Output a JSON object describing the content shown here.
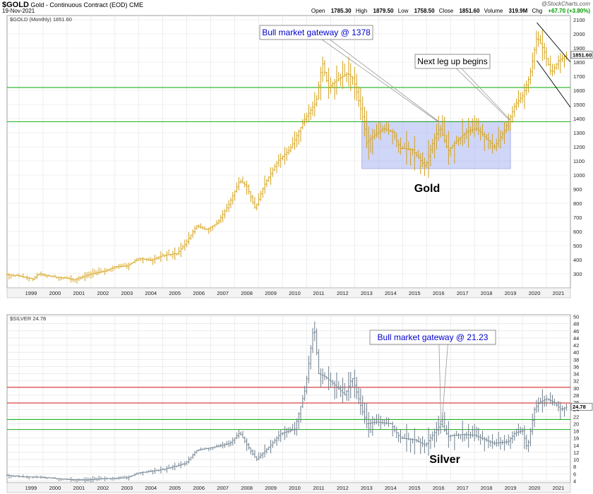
{
  "header": {
    "symbol": "$GOLD",
    "description": "Gold - Continuous Contract (EOD) CME",
    "date": "19-Nov-2021",
    "brand": "@StockCharts.com",
    "open_label": "Open",
    "open": "1785.30",
    "high_label": "High",
    "high": "1879.50",
    "low_label": "Low",
    "low": "1758.50",
    "close_label": "Close",
    "close": "1851.60",
    "volume_label": "Volume",
    "volume": "319.9M",
    "chg_label": "Chg",
    "chg": "+67.70 (+3.80%)"
  },
  "chart_data": [
    {
      "type": "ohlc",
      "legend": "$GOLD (Monthly) 1851.60",
      "last_value_label": "1851.60",
      "annotation_label": "Gold",
      "x_ticks": [
        "1999",
        "2000",
        "2001",
        "2002",
        "2003",
        "2004",
        "2005",
        "2006",
        "2007",
        "2008",
        "2009",
        "2010",
        "2011",
        "2012",
        "2013",
        "2014",
        "2015",
        "2016",
        "2017",
        "2018",
        "2019",
        "2020",
        "2021"
      ],
      "x_range": [
        1998.5,
        2022.0
      ],
      "y_range": [
        200,
        2130
      ],
      "y_ticks": [
        300,
        400,
        500,
        600,
        700,
        800,
        900,
        1000,
        1100,
        1200,
        1300,
        1400,
        1500,
        1600,
        1700,
        1800,
        1900,
        2000,
        2100
      ],
      "color": "#d4a017",
      "series": [
        {
          "values": [
            [
              1998.5,
              295
            ],
            [
              1999.0,
              285
            ],
            [
              1999.6,
              262
            ],
            [
              1999.8,
              300
            ],
            [
              2000.3,
              282
            ],
            [
              2001.0,
              268
            ],
            [
              2001.3,
              258
            ],
            [
              2002.0,
              300
            ],
            [
              2002.6,
              320
            ],
            [
              2003.0,
              350
            ],
            [
              2003.5,
              355
            ],
            [
              2004.0,
              410
            ],
            [
              2004.5,
              395
            ],
            [
              2005.0,
              430
            ],
            [
              2005.6,
              445
            ],
            [
              2005.95,
              515
            ],
            [
              2006.4,
              640
            ],
            [
              2006.8,
              610
            ],
            [
              2007.3,
              665
            ],
            [
              2007.75,
              790
            ],
            [
              2008.2,
              960
            ],
            [
              2008.5,
              920
            ],
            [
              2008.85,
              760
            ],
            [
              2009.2,
              920
            ],
            [
              2009.8,
              1100
            ],
            [
              2010.3,
              1180
            ],
            [
              2010.9,
              1390
            ],
            [
              2011.4,
              1520
            ],
            [
              2011.65,
              1800
            ],
            [
              2011.9,
              1620
            ],
            [
              2012.3,
              1680
            ],
            [
              2012.7,
              1720
            ],
            [
              2012.95,
              1680
            ],
            [
              2013.35,
              1400
            ],
            [
              2013.5,
              1230
            ],
            [
              2013.8,
              1280
            ],
            [
              2014.2,
              1330
            ],
            [
              2014.6,
              1300
            ],
            [
              2014.9,
              1190
            ],
            [
              2015.4,
              1180
            ],
            [
              2015.95,
              1060
            ],
            [
              2016.3,
              1250
            ],
            [
              2016.55,
              1340
            ],
            [
              2016.9,
              1170
            ],
            [
              2017.3,
              1250
            ],
            [
              2017.7,
              1310
            ],
            [
              2018.1,
              1330
            ],
            [
              2018.6,
              1240
            ],
            [
              2018.8,
              1190
            ],
            [
              2019.2,
              1300
            ],
            [
              2019.45,
              1390
            ],
            [
              2019.7,
              1500
            ],
            [
              2020.0,
              1560
            ],
            [
              2020.3,
              1700
            ],
            [
              2020.6,
              1980
            ],
            [
              2020.9,
              1880
            ],
            [
              2021.2,
              1720
            ],
            [
              2021.5,
              1810
            ],
            [
              2021.88,
              1851.6
            ]
          ]
        }
      ],
      "horizontal_lines": [
        {
          "value": 1620,
          "color": "#00aa00"
        },
        {
          "value": 1378,
          "color": "#00aa00"
        }
      ],
      "shaded_region": {
        "x0": 2013.3,
        "x1": 2019.5,
        "y0": 1045,
        "y1": 1380,
        "color": "#aab4f0"
      },
      "callouts": [
        {
          "text": "Bull market gateway @ 1378",
          "color": "#0000cc",
          "target": [
            2016.5,
            1375
          ]
        },
        {
          "text": "Next leg up begins",
          "color": "#000000",
          "target": [
            2019.45,
            1390
          ]
        }
      ],
      "trend_lines": [
        {
          "from": [
            2020.6,
            2080
          ],
          "to": [
            2022.0,
            1800
          ],
          "color": "#000000"
        },
        {
          "from": [
            2020.6,
            1810
          ],
          "to": [
            2022.0,
            1480
          ],
          "color": "#000000"
        }
      ]
    },
    {
      "type": "ohlc",
      "legend": "$SILVER 24.78",
      "last_value_label": "24.78",
      "annotation_label": "Silver",
      "x_ticks": [
        "1999",
        "2000",
        "2001",
        "2002",
        "2003",
        "2004",
        "2005",
        "2006",
        "2007",
        "2008",
        "2009",
        "2010",
        "2011",
        "2012",
        "2013",
        "2014",
        "2015",
        "2016",
        "2017",
        "2018",
        "2019",
        "2020",
        "2021"
      ],
      "x_range": [
        1998.5,
        2022.0
      ],
      "y_range": [
        3.5,
        50.5
      ],
      "y_ticks": [
        4,
        6,
        8,
        10,
        12,
        14,
        16,
        18,
        20,
        22,
        24,
        26,
        28,
        30,
        32,
        34,
        36,
        38,
        40,
        42,
        44,
        46,
        48,
        50
      ],
      "color": "#6f7f8c",
      "series": [
        {
          "values": [
            [
              1998.5,
              5.6
            ],
            [
              1999.0,
              5.2
            ],
            [
              2000.0,
              5.0
            ],
            [
              2001.0,
              4.4
            ],
            [
              2001.8,
              4.3
            ],
            [
              2002.5,
              4.6
            ],
            [
              2003.5,
              4.9
            ],
            [
              2004.0,
              6.3
            ],
            [
              2004.3,
              6.5
            ],
            [
              2005.0,
              7.2
            ],
            [
              2005.95,
              8.9
            ],
            [
              2006.4,
              12.5
            ],
            [
              2007.0,
              13.3
            ],
            [
              2007.8,
              14.5
            ],
            [
              2008.2,
              17.5
            ],
            [
              2008.7,
              12.0
            ],
            [
              2008.9,
              10.0
            ],
            [
              2009.5,
              14.0
            ],
            [
              2009.9,
              17.2
            ],
            [
              2010.5,
              18.5
            ],
            [
              2010.95,
              30.0
            ],
            [
              2011.3,
              48.0
            ],
            [
              2011.5,
              34.0
            ],
            [
              2011.8,
              33.0
            ],
            [
              2012.3,
              30.0
            ],
            [
              2012.6,
              28.0
            ],
            [
              2012.9,
              33.0
            ],
            [
              2013.3,
              24.0
            ],
            [
              2013.5,
              20.0
            ],
            [
              2013.9,
              20.5
            ],
            [
              2014.5,
              20.0
            ],
            [
              2014.9,
              16.0
            ],
            [
              2015.5,
              15.5
            ],
            [
              2015.95,
              14.0
            ],
            [
              2016.6,
              20.0
            ],
            [
              2016.9,
              16.5
            ],
            [
              2017.5,
              17.0
            ],
            [
              2018.0,
              16.8
            ],
            [
              2018.8,
              14.5
            ],
            [
              2019.4,
              15.0
            ],
            [
              2019.7,
              17.5
            ],
            [
              2020.0,
              18.0
            ],
            [
              2020.2,
              13.0
            ],
            [
              2020.5,
              24.0
            ],
            [
              2020.7,
              26.0
            ],
            [
              2021.0,
              27.0
            ],
            [
              2021.3,
              26.0
            ],
            [
              2021.6,
              24.0
            ],
            [
              2021.88,
              24.78
            ]
          ]
        }
      ],
      "horizontal_lines": [
        {
          "value": 30.2,
          "color": "#dd0000"
        },
        {
          "value": 25.8,
          "color": "#dd0000"
        },
        {
          "value": 21.2,
          "color": "#00aa00"
        },
        {
          "value": 18.4,
          "color": "#00aa00"
        }
      ],
      "callouts": [
        {
          "text": "Bull market gateway @ 21.23",
          "color": "#0000cc",
          "target": [
            2016.6,
            20.5
          ]
        }
      ]
    }
  ]
}
